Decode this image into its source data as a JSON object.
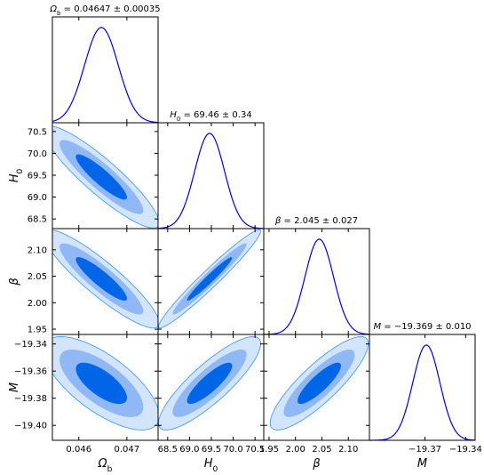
{
  "chart_data": {
    "type": "corner",
    "parameters": [
      {
        "key": "Ob",
        "label": "Ω_b",
        "title": "Ω_b = 0.04647 ± 0.00035",
        "mean": 0.04647,
        "sigma": 0.00035,
        "range": [
          0.04545,
          0.04765
        ],
        "ticks": [
          0.046,
          0.047
        ],
        "tick_labels": [
          "0.046",
          "0.047"
        ]
      },
      {
        "key": "H0",
        "label": "H_0",
        "title": "H_0 = 69.46 ± 0.34",
        "mean": 69.46,
        "sigma": 0.34,
        "range": [
          68.28,
          70.7
        ],
        "ticks": [
          68.5,
          69.0,
          69.5,
          70.0,
          70.5
        ],
        "tick_labels": [
          "68.5",
          "69.0",
          "69.5",
          "70.0",
          "70.5"
        ]
      },
      {
        "key": "beta",
        "label": "β",
        "title": "β = 2.045 ± 0.027",
        "mean": 2.045,
        "sigma": 0.027,
        "range": [
          1.94,
          2.14
        ],
        "ticks": [
          1.95,
          2.0,
          2.05,
          2.1
        ],
        "tick_labels": [
          "1.95",
          "2.00",
          "2.05",
          "2.10"
        ]
      },
      {
        "key": "M",
        "label": "M",
        "title": "M = −19.369 ± 0.010",
        "mean": -19.369,
        "sigma": 0.01,
        "range": [
          -19.411,
          -19.333
        ],
        "ticks": [
          -19.4,
          -19.38,
          -19.36,
          -19.34
        ],
        "tick_labels": [
          "−19.40",
          "−19.38",
          "−19.36",
          "−19.34"
        ]
      }
    ],
    "diag_ticks": {
      "M": {
        "ticks": [
          -19.37,
          -19.34
        ],
        "tick_labels": [
          "−19.37",
          "−19.34"
        ]
      }
    },
    "correlations": [
      {
        "i": 1,
        "j": 0,
        "rho": -0.9
      },
      {
        "i": 2,
        "j": 0,
        "rho": -0.9
      },
      {
        "i": 3,
        "j": 0,
        "rho": -0.7
      },
      {
        "i": 2,
        "j": 1,
        "rho": 0.97
      },
      {
        "i": 3,
        "j": 1,
        "rho": 0.85
      },
      {
        "i": 3,
        "j": 2,
        "rho": 0.85
      }
    ],
    "contour_levels": [
      "1σ",
      "2σ",
      "3σ"
    ],
    "colors": {
      "contour_1": "#0066e8",
      "contour_2": "#8fb8f4",
      "contour_3": "#d2e5fb",
      "contour_edge": "#4a9be8",
      "pdf_line": "#0000dd"
    }
  }
}
